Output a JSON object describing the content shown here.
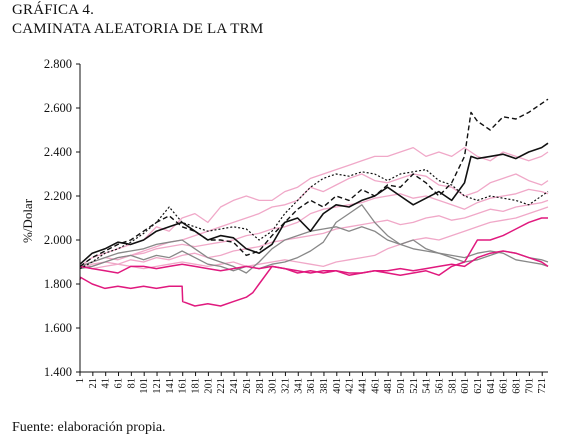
{
  "figure": {
    "label": "GRÁFICA 4.",
    "title": "CAMINATA ALEATORIA DE LA TRM",
    "source": "Fuente: elaboración propia."
  },
  "chart_data": {
    "type": "line",
    "ylabel": "%/Dolar",
    "xlabel": "",
    "ylim": [
      1400,
      2800
    ],
    "yticks": [
      1400,
      1600,
      1800,
      2000,
      2200,
      2400,
      2600,
      2800
    ],
    "ytick_labels": [
      "1.400",
      "1.600",
      "1.800",
      "2.000",
      "2.200",
      "2.400",
      "2.600",
      "2.800"
    ],
    "xlim": [
      1,
      730
    ],
    "xticks": [
      1,
      21,
      41,
      61,
      81,
      101,
      121,
      141,
      161,
      181,
      201,
      221,
      241,
      261,
      281,
      301,
      321,
      341,
      361,
      381,
      401,
      421,
      441,
      461,
      481,
      501,
      521,
      541,
      561,
      581,
      601,
      621,
      641,
      661,
      681,
      701,
      721
    ],
    "grid": false,
    "legend": "none",
    "series": [
      {
        "color": "#111111",
        "dash": "5,3",
        "width": 1.4,
        "x": [
          1,
          20,
          40,
          60,
          80,
          100,
          120,
          140,
          160,
          180,
          200,
          220,
          240,
          260,
          280,
          300,
          320,
          340,
          360,
          380,
          400,
          420,
          440,
          460,
          480,
          500,
          520,
          540,
          560,
          580,
          600,
          610,
          620,
          640,
          660,
          680,
          700,
          720,
          730
        ],
        "y": [
          1880,
          1920,
          1950,
          1980,
          2000,
          2040,
          2080,
          2110,
          2060,
          2040,
          2000,
          2000,
          1990,
          1930,
          1950,
          2020,
          2080,
          2140,
          2180,
          2150,
          2200,
          2180,
          2230,
          2200,
          2250,
          2240,
          2300,
          2260,
          2200,
          2260,
          2380,
          2580,
          2540,
          2500,
          2560,
          2550,
          2580,
          2620,
          2640
        ]
      },
      {
        "color": "#111111",
        "dash": "",
        "width": 1.6,
        "x": [
          1,
          20,
          40,
          60,
          80,
          100,
          120,
          140,
          160,
          180,
          200,
          220,
          240,
          260,
          280,
          300,
          320,
          340,
          360,
          380,
          400,
          420,
          440,
          460,
          480,
          500,
          520,
          540,
          560,
          580,
          600,
          610,
          620,
          640,
          660,
          680,
          700,
          720,
          730
        ],
        "y": [
          1890,
          1940,
          1960,
          1990,
          1980,
          2000,
          2040,
          2060,
          2080,
          2040,
          2000,
          2020,
          2010,
          1960,
          1940,
          1980,
          2080,
          2100,
          2040,
          2120,
          2160,
          2150,
          2180,
          2200,
          2240,
          2200,
          2160,
          2190,
          2220,
          2180,
          2260,
          2380,
          2370,
          2380,
          2390,
          2370,
          2400,
          2420,
          2440
        ]
      },
      {
        "color": "#111111",
        "dash": "2,2",
        "width": 1.2,
        "x": [
          1,
          20,
          40,
          60,
          80,
          100,
          120,
          140,
          160,
          180,
          200,
          220,
          240,
          260,
          280,
          300,
          320,
          340,
          360,
          380,
          400,
          420,
          440,
          460,
          480,
          500,
          520,
          540,
          560,
          580,
          600,
          620,
          640,
          660,
          680,
          700,
          720,
          730
        ],
        "y": [
          1870,
          1900,
          1940,
          1960,
          1990,
          2030,
          2080,
          2150,
          2080,
          2060,
          2040,
          2050,
          2060,
          2050,
          2000,
          2040,
          2120,
          2180,
          2240,
          2280,
          2300,
          2290,
          2310,
          2300,
          2270,
          2300,
          2310,
          2320,
          2270,
          2250,
          2200,
          2180,
          2200,
          2190,
          2180,
          2160,
          2200,
          2220
        ]
      },
      {
        "color": "#888888",
        "dash": "",
        "width": 1.3,
        "x": [
          1,
          20,
          40,
          60,
          80,
          100,
          120,
          140,
          160,
          180,
          200,
          220,
          240,
          260,
          280,
          300,
          320,
          340,
          360,
          380,
          400,
          420,
          440,
          460,
          480,
          500,
          520,
          540,
          560,
          580,
          600,
          620,
          640,
          660,
          680,
          700,
          720,
          730
        ],
        "y": [
          1880,
          1900,
          1920,
          1940,
          1950,
          1960,
          1980,
          1990,
          2000,
          1960,
          1920,
          1900,
          1880,
          1850,
          1900,
          1960,
          2000,
          2020,
          2040,
          2050,
          2060,
          2040,
          2060,
          2040,
          2000,
          1980,
          1960,
          1950,
          1940,
          1930,
          1920,
          1940,
          1950,
          1940,
          1910,
          1900,
          1890,
          1880
        ]
      },
      {
        "color": "#888888",
        "dash": "",
        "width": 1.3,
        "x": [
          1,
          20,
          40,
          60,
          80,
          100,
          120,
          140,
          160,
          180,
          200,
          220,
          240,
          260,
          280,
          300,
          320,
          340,
          360,
          380,
          400,
          420,
          440,
          460,
          480,
          500,
          520,
          540,
          560,
          580,
          600,
          620,
          640,
          660,
          680,
          700,
          720,
          730
        ],
        "y": [
          1870,
          1880,
          1900,
          1920,
          1930,
          1910,
          1930,
          1920,
          1950,
          1920,
          1890,
          1880,
          1860,
          1880,
          1870,
          1890,
          1900,
          1920,
          1950,
          1990,
          2080,
          2120,
          2160,
          2080,
          2020,
          1980,
          2000,
          1960,
          1940,
          1920,
          1900,
          1910,
          1930,
          1950,
          1940,
          1920,
          1910,
          1900
        ]
      },
      {
        "color": "#e0197e",
        "dash": "",
        "width": 1.5,
        "x": [
          1,
          2,
          20,
          40,
          60,
          80,
          100,
          120,
          140,
          160,
          161,
          180,
          200,
          220,
          240,
          260,
          270,
          280,
          300,
          320,
          340,
          360,
          380,
          400,
          420,
          440,
          460,
          480,
          500,
          520,
          540,
          560,
          580,
          600,
          620,
          640,
          660,
          680,
          700,
          720,
          730
        ],
        "y": [
          1820,
          1830,
          1800,
          1780,
          1790,
          1780,
          1790,
          1780,
          1790,
          1790,
          1720,
          1700,
          1710,
          1700,
          1720,
          1740,
          1760,
          1800,
          1880,
          1870,
          1850,
          1860,
          1850,
          1860,
          1840,
          1850,
          1860,
          1850,
          1840,
          1850,
          1860,
          1840,
          1880,
          1900,
          2000,
          2000,
          2020,
          2050,
          2080,
          2100,
          2100
        ]
      },
      {
        "color": "#e0197e",
        "dash": "",
        "width": 1.5,
        "x": [
          1,
          20,
          40,
          60,
          80,
          100,
          120,
          140,
          160,
          180,
          200,
          220,
          240,
          260,
          280,
          300,
          320,
          340,
          360,
          380,
          400,
          420,
          440,
          460,
          480,
          500,
          520,
          540,
          560,
          580,
          600,
          620,
          640,
          660,
          680,
          700,
          720,
          730
        ],
        "y": [
          1880,
          1870,
          1860,
          1850,
          1880,
          1880,
          1870,
          1880,
          1890,
          1880,
          1870,
          1860,
          1870,
          1880,
          1870,
          1880,
          1870,
          1860,
          1850,
          1860,
          1860,
          1850,
          1850,
          1860,
          1860,
          1870,
          1860,
          1870,
          1880,
          1890,
          1880,
          1920,
          1940,
          1950,
          1940,
          1920,
          1900,
          1880
        ]
      },
      {
        "color": "#f0a8c8",
        "dash": "",
        "width": 1.3,
        "x": [
          1,
          20,
          40,
          60,
          80,
          100,
          120,
          140,
          160,
          180,
          200,
          220,
          240,
          260,
          280,
          300,
          320,
          340,
          360,
          380,
          400,
          420,
          440,
          460,
          480,
          500,
          520,
          540,
          560,
          580,
          600,
          620,
          640,
          660,
          680,
          700,
          720,
          730
        ],
        "y": [
          1880,
          1920,
          1940,
          1960,
          1980,
          2000,
          2060,
          2040,
          2100,
          2120,
          2080,
          2150,
          2180,
          2200,
          2180,
          2180,
          2220,
          2240,
          2280,
          2300,
          2320,
          2340,
          2360,
          2380,
          2380,
          2400,
          2420,
          2380,
          2400,
          2380,
          2420,
          2380,
          2360,
          2400,
          2380,
          2360,
          2380,
          2400
        ]
      },
      {
        "color": "#f0a8c8",
        "dash": "",
        "width": 1.3,
        "x": [
          1,
          20,
          40,
          60,
          80,
          100,
          120,
          140,
          160,
          180,
          200,
          220,
          240,
          260,
          280,
          300,
          320,
          340,
          360,
          380,
          400,
          420,
          440,
          460,
          480,
          500,
          520,
          540,
          560,
          580,
          600,
          620,
          640,
          660,
          680,
          700,
          720,
          730
        ],
        "y": [
          1880,
          1900,
          1920,
          1910,
          1930,
          1950,
          1970,
          1990,
          2000,
          2020,
          2040,
          2060,
          2080,
          2100,
          2120,
          2150,
          2160,
          2180,
          2240,
          2220,
          2250,
          2280,
          2300,
          2270,
          2260,
          2280,
          2300,
          2290,
          2250,
          2240,
          2200,
          2220,
          2260,
          2280,
          2300,
          2270,
          2250,
          2270
        ]
      },
      {
        "color": "#f0a8c8",
        "dash": "",
        "width": 1.3,
        "x": [
          1,
          20,
          40,
          60,
          80,
          100,
          120,
          140,
          160,
          180,
          200,
          220,
          240,
          260,
          280,
          300,
          320,
          340,
          360,
          380,
          400,
          420,
          440,
          460,
          480,
          500,
          520,
          540,
          560,
          580,
          600,
          620,
          640,
          660,
          680,
          700,
          720,
          730
        ],
        "y": [
          1870,
          1890,
          1900,
          1920,
          1930,
          1940,
          1960,
          1970,
          1980,
          1970,
          1980,
          1990,
          2000,
          2020,
          2030,
          2050,
          2060,
          2080,
          2120,
          2140,
          2150,
          2160,
          2170,
          2190,
          2200,
          2210,
          2190,
          2200,
          2180,
          2160,
          2140,
          2170,
          2190,
          2200,
          2210,
          2230,
          2220,
          2210
        ]
      },
      {
        "color": "#f0a8c8",
        "dash": "",
        "width": 1.3,
        "x": [
          1,
          20,
          40,
          60,
          80,
          100,
          120,
          140,
          160,
          180,
          200,
          220,
          240,
          260,
          280,
          300,
          320,
          340,
          360,
          380,
          400,
          420,
          440,
          460,
          480,
          500,
          520,
          540,
          560,
          580,
          600,
          620,
          640,
          660,
          680,
          700,
          720,
          730
        ],
        "y": [
          1880,
          1880,
          1900,
          1890,
          1910,
          1900,
          1920,
          1910,
          1930,
          1940,
          1920,
          1930,
          1950,
          1960,
          1970,
          1990,
          2000,
          2010,
          2020,
          2030,
          2050,
          2060,
          2070,
          2080,
          2090,
          2070,
          2080,
          2100,
          2110,
          2090,
          2100,
          2120,
          2140,
          2130,
          2150,
          2160,
          2170,
          2180
        ]
      },
      {
        "color": "#f0a8c8",
        "dash": "",
        "width": 1.3,
        "x": [
          1,
          20,
          40,
          60,
          80,
          100,
          120,
          140,
          160,
          180,
          200,
          220,
          240,
          260,
          280,
          300,
          320,
          340,
          360,
          380,
          400,
          420,
          440,
          460,
          480,
          500,
          520,
          540,
          560,
          580,
          600,
          620,
          640,
          660,
          680,
          700,
          720,
          730
        ],
        "y": [
          1880,
          1870,
          1880,
          1890,
          1880,
          1870,
          1880,
          1890,
          1900,
          1890,
          1880,
          1890,
          1900,
          1880,
          1890,
          1900,
          1910,
          1900,
          1890,
          1880,
          1900,
          1910,
          1920,
          1930,
          1960,
          1980,
          2000,
          2010,
          2000,
          2020,
          2040,
          2060,
          2080,
          2090,
          2100,
          2120,
          2140,
          2150
        ]
      }
    ]
  }
}
